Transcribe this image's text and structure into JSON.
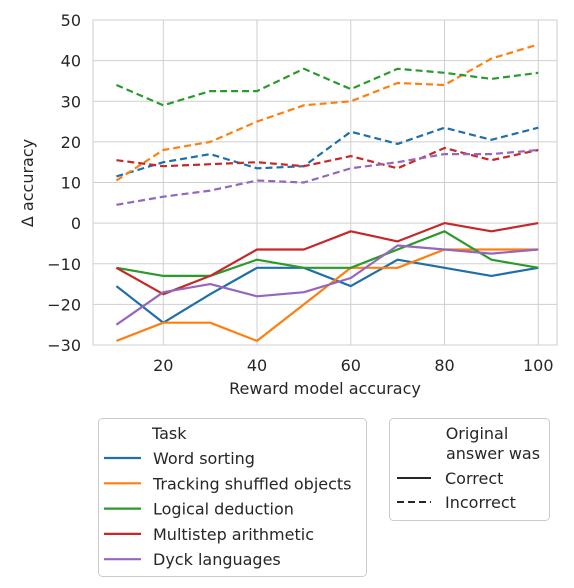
{
  "chart_data": {
    "type": "line",
    "xlabel": "Reward model accuracy",
    "ylabel": "Δ accuracy",
    "xlim": [
      5,
      104
    ],
    "ylim": [
      -30,
      50
    ],
    "xticks": [
      20,
      40,
      60,
      80,
      100
    ],
    "yticks": [
      -30,
      -20,
      -10,
      0,
      10,
      20,
      30,
      40,
      50
    ],
    "grid": true,
    "x": [
      10,
      20,
      30,
      40,
      50,
      60,
      70,
      80,
      90,
      100
    ],
    "legend_task": {
      "title": "Task",
      "placement": "bottom-left (outside plot)"
    },
    "legend_style": {
      "title_line1": "Original",
      "title_line2": "answer was",
      "entries": [
        {
          "label": "Correct",
          "dash": "solid"
        },
        {
          "label": "Incorrect",
          "dash": "dashed"
        }
      ],
      "placement": "bottom-right (outside plot)"
    },
    "tasks": [
      {
        "name": "Word sorting",
        "color": "#1f6fa8",
        "correct": [
          -15.5,
          -24.5,
          -17.5,
          -11,
          -11,
          -15.5,
          -9,
          -11,
          -13,
          -11
        ],
        "incorrect": [
          11.5,
          15,
          17,
          13.5,
          14,
          22.5,
          19.5,
          23.5,
          20.5,
          23.5
        ]
      },
      {
        "name": "Tracking shuffled objects",
        "color": "#ff7f0e",
        "correct": [
          -29,
          -24.5,
          -24.5,
          -29,
          -20,
          -11,
          -11,
          -6.5,
          -6.5,
          -6.5
        ],
        "incorrect": [
          10.5,
          18,
          20,
          25,
          29,
          30,
          34.5,
          34,
          40.5,
          44
        ]
      },
      {
        "name": "Logical deduction",
        "color": "#2a9a2a",
        "correct": [
          -11,
          -13,
          -13,
          -9,
          -11,
          -11,
          -6.5,
          -2,
          -9,
          -11
        ],
        "incorrect": [
          34,
          29,
          32.5,
          32.5,
          38,
          33,
          38,
          37,
          35.5,
          37
        ]
      },
      {
        "name": "Multistep arithmetic",
        "color": "#c62828",
        "correct": [
          -11,
          -17.5,
          -13,
          -6.5,
          -6.5,
          -2,
          -4.5,
          0,
          -2,
          0
        ],
        "incorrect": [
          15.5,
          14,
          14.5,
          15,
          14,
          16.5,
          13.5,
          18.5,
          15.5,
          18
        ]
      },
      {
        "name": "Dyck languages",
        "color": "#9467bd",
        "correct": [
          -25,
          -17,
          -15,
          -18,
          -17,
          -13.5,
          -5.5,
          -6.5,
          -7.5,
          -6.5
        ],
        "incorrect": [
          4.5,
          6.5,
          8,
          10.5,
          10,
          13.5,
          15,
          17,
          17,
          18
        ]
      }
    ]
  }
}
